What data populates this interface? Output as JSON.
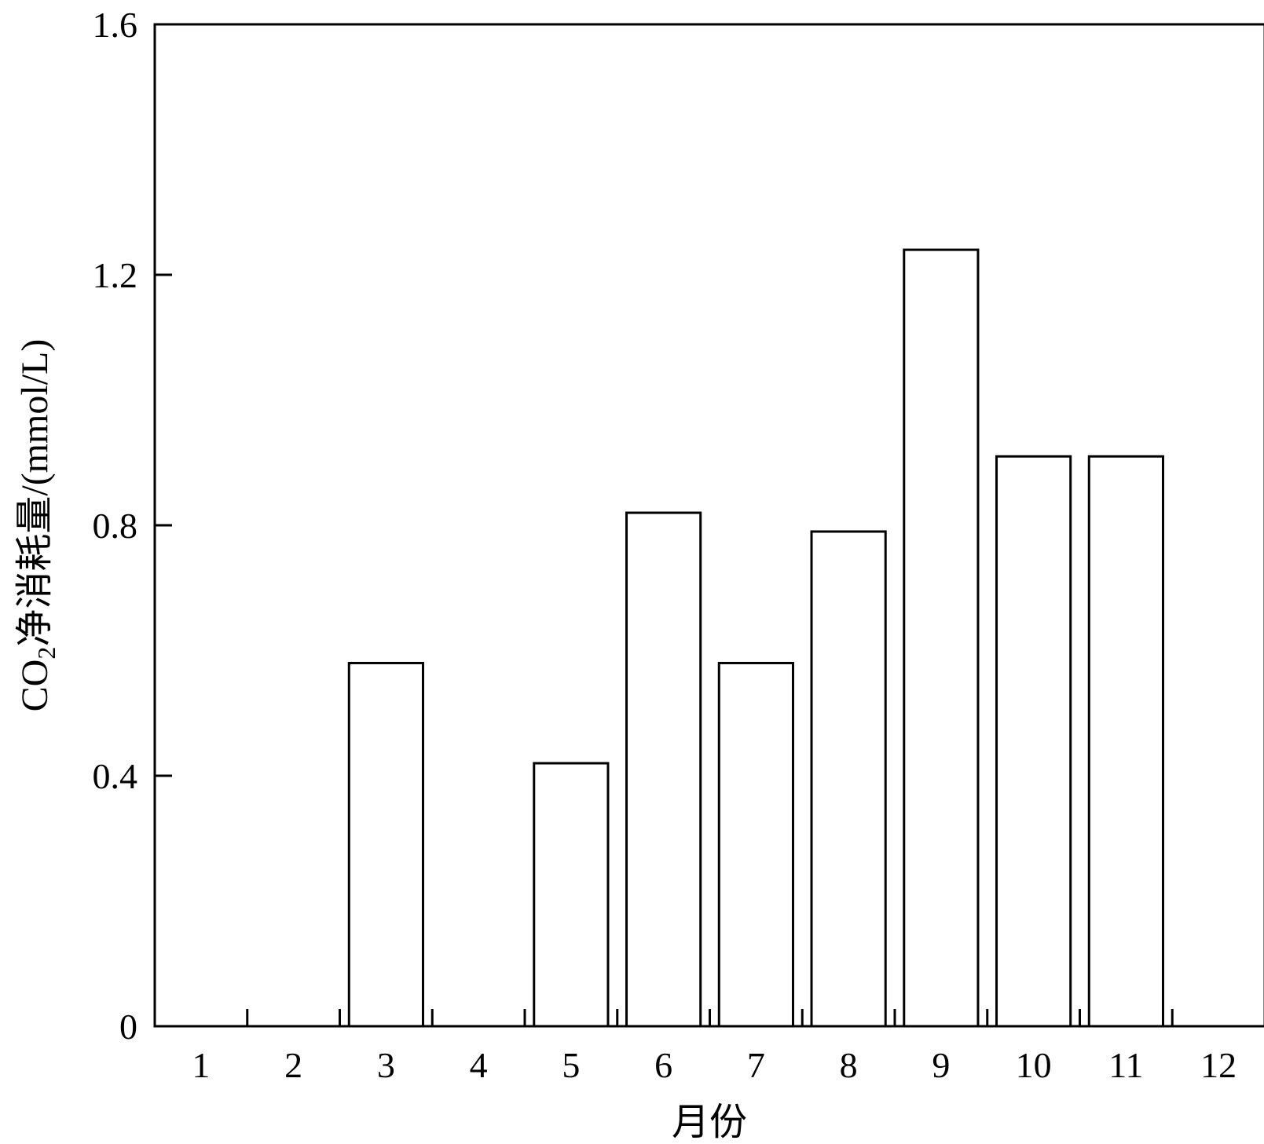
{
  "chart_data": {
    "type": "bar",
    "categories": [
      "1",
      "2",
      "3",
      "4",
      "5",
      "6",
      "7",
      "8",
      "9",
      "10",
      "11",
      "12"
    ],
    "values": [
      0,
      0,
      0.58,
      0,
      0.42,
      0.82,
      0.58,
      0.79,
      1.24,
      0.91,
      0.91,
      0
    ],
    "title": "",
    "xlabel": "月份",
    "ylabel": {
      "prefix": "CO",
      "subscript": "2",
      "suffix": "净消耗量/(mmol/L)"
    },
    "ylim": [
      0,
      1.6
    ],
    "yticks": [
      "0",
      "0.4",
      "0.8",
      "1.2",
      "1.6"
    ],
    "ytick_values": [
      0,
      0.4,
      0.8,
      1.2,
      1.6
    ],
    "grid": false,
    "legend": "none",
    "bar_fill": "#ffffff",
    "bar_stroke": "#000000",
    "axis_color": "#000000"
  }
}
